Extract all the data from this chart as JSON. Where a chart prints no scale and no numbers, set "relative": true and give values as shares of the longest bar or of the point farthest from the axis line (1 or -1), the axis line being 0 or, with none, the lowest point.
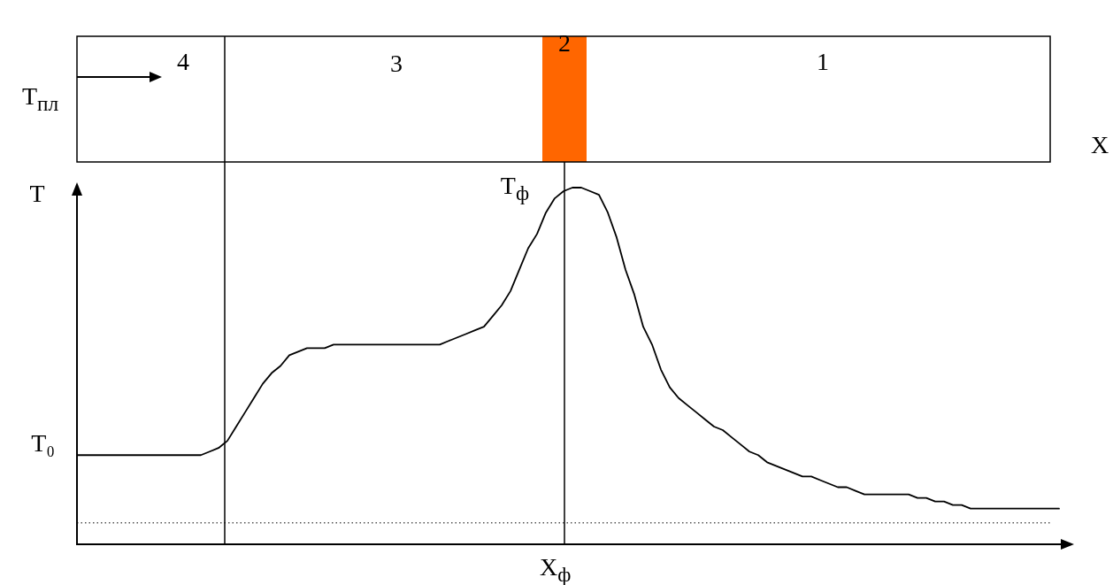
{
  "chart_data": {
    "type": "line",
    "relative": true,
    "xlabel": "X",
    "ylabel": "T",
    "marker": "none",
    "color": "#000000",
    "categories": [
      null,
      null,
      null,
      null,
      null,
      null,
      null,
      null,
      null,
      null,
      null,
      null,
      null,
      null,
      null,
      null,
      null,
      null,
      null,
      null,
      null,
      null,
      null,
      null,
      null,
      null,
      null,
      null,
      null,
      null,
      null,
      null,
      null,
      null,
      null,
      null,
      null,
      null,
      null,
      null,
      null,
      null,
      null,
      null,
      null,
      null,
      null,
      null,
      null,
      null,
      null,
      null,
      null,
      null,
      null,
      null,
      null,
      null,
      null,
      null,
      null,
      null,
      null,
      null,
      null,
      null,
      null,
      null,
      null,
      null,
      null,
      null,
      null,
      null,
      null,
      null,
      null,
      null,
      null,
      null,
      null,
      null,
      null,
      null,
      null,
      null,
      null,
      null,
      null,
      null,
      null,
      null,
      null,
      null,
      null,
      null,
      null,
      null,
      null,
      null,
      null,
      null,
      null,
      null,
      null,
      null,
      null,
      null,
      null,
      null,
      null,
      null
    ],
    "values": [
      0.25,
      0.25,
      0.25,
      0.25,
      0.25,
      0.25,
      0.25,
      0.25,
      0.25,
      0.25,
      0.25,
      0.25,
      0.25,
      0.25,
      0.25,
      0.26,
      0.27,
      0.29,
      0.33,
      0.37,
      0.41,
      0.45,
      0.48,
      0.5,
      0.53,
      0.54,
      0.55,
      0.55,
      0.55,
      0.56,
      0.56,
      0.56,
      0.56,
      0.56,
      0.56,
      0.56,
      0.56,
      0.56,
      0.56,
      0.56,
      0.56,
      0.56,
      0.57,
      0.58,
      0.59,
      0.6,
      0.61,
      0.64,
      0.67,
      0.71,
      0.77,
      0.83,
      0.87,
      0.93,
      0.97,
      0.99,
      1.0,
      1.0,
      0.99,
      0.98,
      0.93,
      0.86,
      0.77,
      0.7,
      0.61,
      0.56,
      0.49,
      0.44,
      0.41,
      0.39,
      0.37,
      0.35,
      0.33,
      0.32,
      0.3,
      0.28,
      0.26,
      0.25,
      0.23,
      0.22,
      0.21,
      0.2,
      0.19,
      0.19,
      0.18,
      0.17,
      0.16,
      0.16,
      0.15,
      0.14,
      0.14,
      0.14,
      0.14,
      0.14,
      0.14,
      0.13,
      0.13,
      0.12,
      0.12,
      0.11,
      0.11,
      0.1,
      0.1,
      0.1,
      0.1,
      0.1,
      0.1,
      0.1,
      0.1,
      0.1,
      0.1,
      0.1
    ],
    "ref_lines": [
      {
        "axis": "y",
        "value": 0.06,
        "line_style": "dotted"
      }
    ],
    "annotations": [
      "4",
      "3",
      "2",
      "1",
      "T$_{пл}$",
      "T₀",
      "T$_{ф}$",
      "X$_{ф}$"
    ]
  }
}
